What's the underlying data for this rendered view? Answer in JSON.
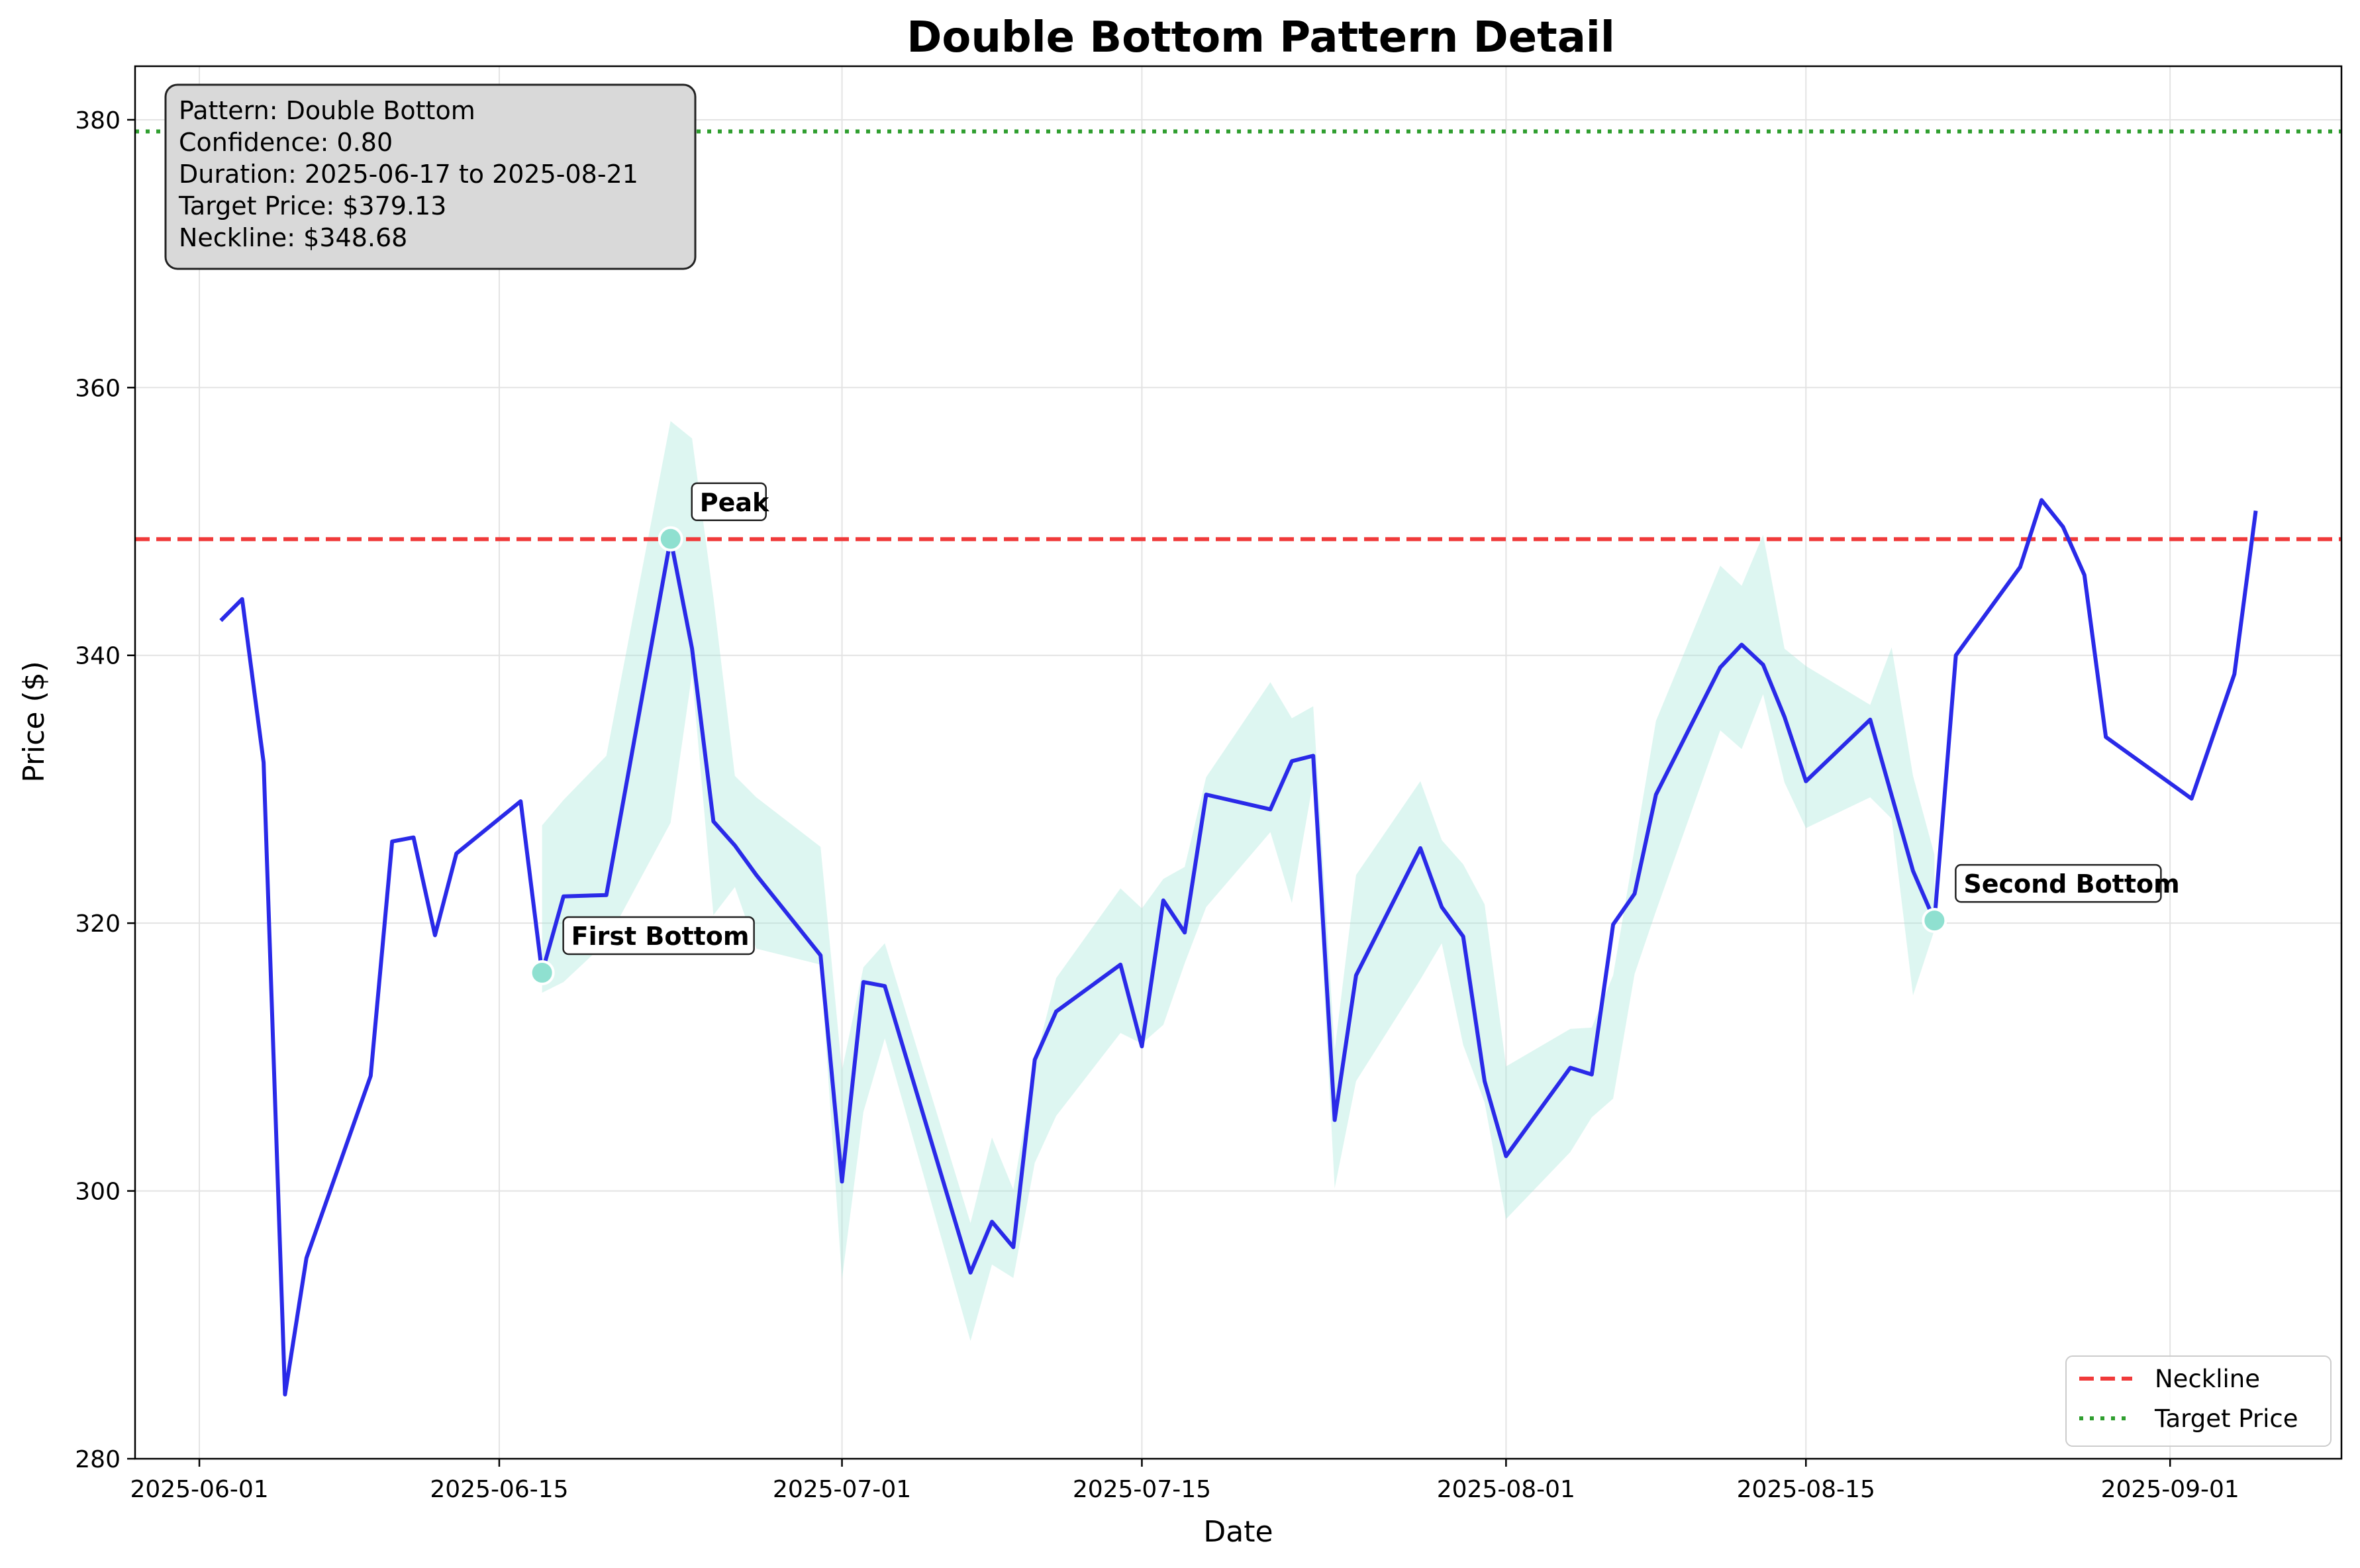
{
  "chart_data": {
    "type": "line",
    "title": "Double Bottom Pattern Detail",
    "xlabel": "Date",
    "ylabel": "Price ($)",
    "x_tick_labels": [
      "2025-06-01",
      "2025-06-15",
      "2025-07-01",
      "2025-07-15",
      "2025-08-01",
      "2025-08-15",
      "2025-09-01"
    ],
    "x_tick_dates": [
      "2025-06-01",
      "2025-06-15",
      "2025-07-01",
      "2025-07-15",
      "2025-08-01",
      "2025-08-15",
      "2025-09-01"
    ],
    "y_ticks": [
      280,
      300,
      320,
      340,
      360,
      380
    ],
    "xlim": [
      "2025-05-29",
      "2025-09-09"
    ],
    "ylim": [
      280,
      384
    ],
    "grid": true,
    "legend_position": "bottom-right",
    "price_color": "#2a2ae8",
    "band_color": "#9fe6d6",
    "marker_color": "#8fe0d0",
    "neckline_color": "#f03a3a",
    "target_color": "#2f9e2f",
    "series": [
      {
        "values": [
          [
            "2025-06-02",
            342.6
          ],
          [
            "2025-06-03",
            344.2
          ],
          [
            "2025-06-04",
            332.0
          ],
          [
            "2025-06-05",
            284.8
          ],
          [
            "2025-06-06",
            295.0
          ],
          [
            "2025-06-09",
            308.6
          ],
          [
            "2025-06-10",
            326.1
          ],
          [
            "2025-06-11",
            326.4
          ],
          [
            "2025-06-12",
            319.1
          ],
          [
            "2025-06-13",
            325.2
          ],
          [
            "2025-06-16",
            329.1
          ],
          [
            "2025-06-17",
            316.3
          ],
          [
            "2025-06-18",
            322.0
          ],
          [
            "2025-06-20",
            322.1
          ],
          [
            "2025-06-23",
            348.7
          ],
          [
            "2025-06-24",
            340.5
          ],
          [
            "2025-06-25",
            327.6
          ],
          [
            "2025-06-26",
            325.8
          ],
          [
            "2025-06-27",
            323.6
          ],
          [
            "2025-06-30",
            317.6
          ],
          [
            "2025-07-01",
            300.7
          ],
          [
            "2025-07-02",
            315.6
          ],
          [
            "2025-07-03",
            315.3
          ],
          [
            "2025-07-07",
            293.9
          ],
          [
            "2025-07-08",
            297.7
          ],
          [
            "2025-07-09",
            295.8
          ],
          [
            "2025-07-10",
            309.8
          ],
          [
            "2025-07-11",
            313.4
          ],
          [
            "2025-07-14",
            316.9
          ],
          [
            "2025-07-15",
            310.8
          ],
          [
            "2025-07-16",
            321.7
          ],
          [
            "2025-07-17",
            319.3
          ],
          [
            "2025-07-18",
            329.6
          ],
          [
            "2025-07-21",
            328.5
          ],
          [
            "2025-07-22",
            332.1
          ],
          [
            "2025-07-23",
            332.5
          ],
          [
            "2025-07-24",
            305.3
          ],
          [
            "2025-07-25",
            316.1
          ],
          [
            "2025-07-28",
            325.6
          ],
          [
            "2025-07-29",
            321.2
          ],
          [
            "2025-07-30",
            319.0
          ],
          [
            "2025-07-31",
            308.2
          ],
          [
            "2025-08-01",
            302.6
          ],
          [
            "2025-08-04",
            309.2
          ],
          [
            "2025-08-05",
            308.7
          ],
          [
            "2025-08-06",
            319.9
          ],
          [
            "2025-08-07",
            322.2
          ],
          [
            "2025-08-08",
            329.6
          ],
          [
            "2025-08-11",
            339.1
          ],
          [
            "2025-08-12",
            340.8
          ],
          [
            "2025-08-13",
            339.3
          ],
          [
            "2025-08-14",
            335.4
          ],
          [
            "2025-08-15",
            330.6
          ],
          [
            "2025-08-18",
            335.2
          ],
          [
            "2025-08-20",
            323.9
          ],
          [
            "2025-08-21",
            320.2
          ],
          [
            "2025-08-22",
            340.0
          ],
          [
            "2025-08-25",
            346.6
          ],
          [
            "2025-08-26",
            351.6
          ],
          [
            "2025-08-27",
            349.6
          ],
          [
            "2025-08-28",
            346.0
          ],
          [
            "2025-08-29",
            333.9
          ],
          [
            "2025-09-02",
            329.3
          ],
          [
            "2025-09-04",
            338.6
          ],
          [
            "2025-09-05",
            350.8
          ]
        ]
      }
    ],
    "confidence_band": [
      [
        "2025-06-17",
        314.8,
        327.3
      ],
      [
        "2025-06-18",
        315.6,
        329.2
      ],
      [
        "2025-06-20",
        318.6,
        332.5
      ],
      [
        "2025-06-23",
        327.5,
        357.5
      ],
      [
        "2025-06-24",
        338.6,
        356.2
      ],
      [
        "2025-06-25",
        320.6,
        344.3
      ],
      [
        "2025-06-26",
        322.7,
        331.0
      ],
      [
        "2025-06-27",
        318.1,
        329.4
      ],
      [
        "2025-06-30",
        316.9,
        325.7
      ],
      [
        "2025-07-01",
        293.4,
        309.0
      ],
      [
        "2025-07-02",
        305.9,
        316.7
      ],
      [
        "2025-07-03",
        311.4,
        318.5
      ],
      [
        "2025-07-07",
        288.8,
        297.6
      ],
      [
        "2025-07-08",
        294.5,
        304.0
      ],
      [
        "2025-07-09",
        293.5,
        300.1
      ],
      [
        "2025-07-10",
        302.1,
        309.6
      ],
      [
        "2025-07-11",
        305.6,
        315.9
      ],
      [
        "2025-07-14",
        311.8,
        322.6
      ],
      [
        "2025-07-15",
        311.0,
        321.1
      ],
      [
        "2025-07-16",
        312.4,
        323.3
      ],
      [
        "2025-07-17",
        317.0,
        324.2
      ],
      [
        "2025-07-18",
        321.2,
        330.9
      ],
      [
        "2025-07-21",
        326.8,
        338.0
      ],
      [
        "2025-07-22",
        321.5,
        335.3
      ],
      [
        "2025-07-23",
        330.6,
        336.2
      ],
      [
        "2025-07-24",
        300.2,
        310.5
      ],
      [
        "2025-07-25",
        308.2,
        323.6
      ],
      [
        "2025-07-28",
        315.8,
        330.6
      ],
      [
        "2025-07-29",
        318.5,
        326.2
      ],
      [
        "2025-07-30",
        310.9,
        324.4
      ],
      [
        "2025-07-31",
        306.6,
        321.4
      ],
      [
        "2025-08-01",
        297.9,
        309.3
      ],
      [
        "2025-08-04",
        302.9,
        312.1
      ],
      [
        "2025-08-05",
        305.5,
        312.2
      ],
      [
        "2025-08-06",
        306.9,
        316.1
      ],
      [
        "2025-08-07",
        316.2,
        325.6
      ],
      [
        "2025-08-08",
        320.9,
        335.1
      ],
      [
        "2025-08-11",
        334.4,
        346.7
      ],
      [
        "2025-08-12",
        333.0,
        345.2
      ],
      [
        "2025-08-13",
        337.1,
        349.0
      ],
      [
        "2025-08-14",
        330.5,
        340.5
      ],
      [
        "2025-08-15",
        327.1,
        339.2
      ],
      [
        "2025-08-18",
        329.4,
        336.3
      ],
      [
        "2025-08-19",
        327.8,
        340.6
      ],
      [
        "2025-08-20",
        314.6,
        331.0
      ],
      [
        "2025-08-21",
        319.5,
        325.1
      ]
    ],
    "horizontal_lines": [
      {
        "name": "Neckline",
        "value": 348.68,
        "style": "dashed"
      },
      {
        "name": "Target Price",
        "value": 379.13,
        "style": "dotted"
      }
    ],
    "points": [
      {
        "label": "First Bottom",
        "date": "2025-06-17",
        "value": 316.3
      },
      {
        "label": "Peak",
        "date": "2025-06-23",
        "value": 348.7
      },
      {
        "label": "Second Bottom",
        "date": "2025-08-21",
        "value": 320.2
      }
    ],
    "info_box": [
      "Pattern: Double Bottom",
      "Confidence: 0.80",
      "Duration: 2025-06-17 to 2025-08-21",
      "Target Price: $379.13",
      "Neckline: $348.68"
    ],
    "legend": [
      "Neckline",
      "Target Price"
    ]
  }
}
